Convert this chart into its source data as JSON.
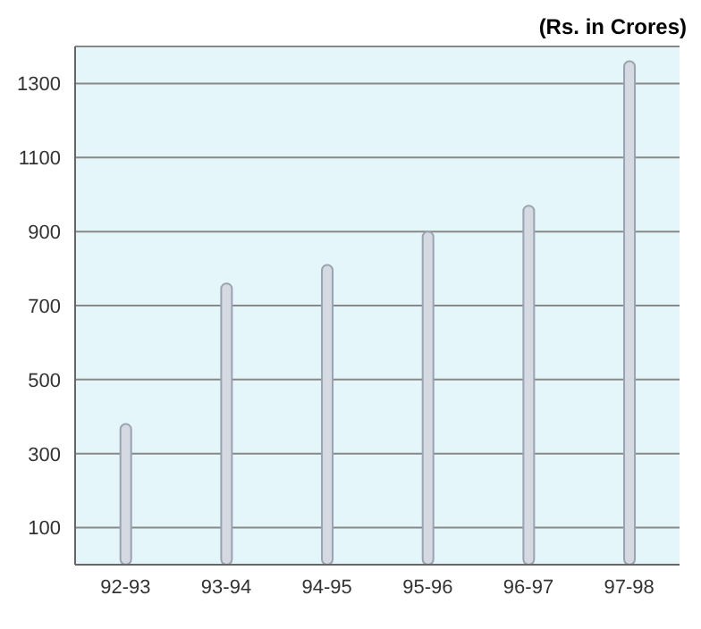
{
  "chart_data": {
    "type": "bar",
    "ylabel": "(Rs. in Crores)",
    "categories": [
      "92-93",
      "93-94",
      "94-95",
      "95-96",
      "96-97",
      "97-98"
    ],
    "values": [
      380,
      760,
      810,
      900,
      970,
      1360
    ],
    "color": "#d5d9e2",
    "ylim": [
      0,
      1400
    ],
    "yticks": [
      100,
      300,
      500,
      700,
      900,
      1100,
      1300
    ],
    "grid": "y"
  }
}
